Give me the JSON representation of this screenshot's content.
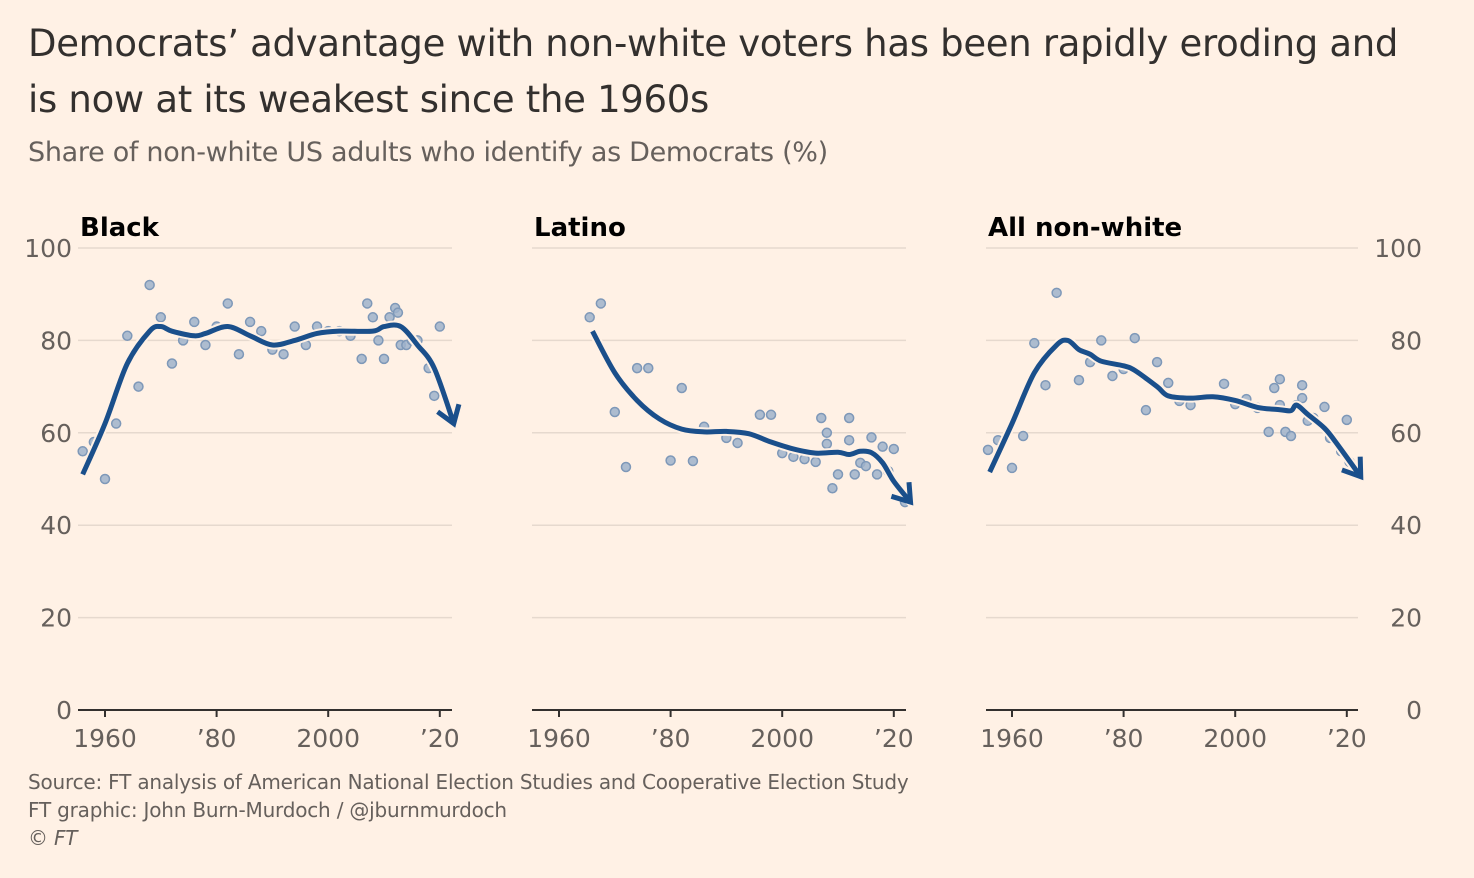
{
  "title": "Democrats’ advantage with non-white voters has been rapidly eroding and is now at its weakest since the 1960s",
  "subtitle": "Share of non-white US adults who identify as Democrats (%)",
  "source": "Source: FT analysis of American National Election Studies and Cooperative Election Study",
  "credit": "FT graphic: John Burn-Murdoch / @jburnmurdoch",
  "copyright": "© FT",
  "colors": {
    "background": "#FFF1E5",
    "trend": "#1A4F8B",
    "points": "#9FB3CB",
    "grid": "#E6D9CE",
    "axis": "#33302E"
  },
  "chart_data": [
    {
      "type": "scatter",
      "title": "Black",
      "ylim": [
        0,
        100
      ],
      "yticks": [
        "0",
        "20",
        "40",
        "60",
        "80",
        "100"
      ],
      "xticks": [
        "1960",
        "’80",
        "2000",
        "’20"
      ],
      "xtick_values": [
        1960,
        1980,
        2000,
        2020
      ],
      "points": [
        [
          1956,
          56
        ],
        [
          1958,
          58
        ],
        [
          1960,
          50
        ],
        [
          1962,
          62
        ],
        [
          1964,
          81
        ],
        [
          1966,
          70
        ],
        [
          1968,
          92
        ],
        [
          1970,
          85
        ],
        [
          1972,
          75
        ],
        [
          1974,
          80
        ],
        [
          1976,
          84
        ],
        [
          1978,
          79
        ],
        [
          1980,
          83
        ],
        [
          1982,
          88
        ],
        [
          1984,
          77
        ],
        [
          1986,
          84
        ],
        [
          1988,
          82
        ],
        [
          1990,
          78
        ],
        [
          1992,
          77
        ],
        [
          1994,
          83
        ],
        [
          1996,
          79
        ],
        [
          1998,
          83
        ],
        [
          2000,
          82
        ],
        [
          2002,
          82
        ],
        [
          2004,
          81
        ],
        [
          2006,
          76
        ],
        [
          2007,
          88
        ],
        [
          2008,
          85
        ],
        [
          2009,
          80
        ],
        [
          2010,
          76
        ],
        [
          2011,
          85
        ],
        [
          2012,
          87
        ],
        [
          2012.5,
          86
        ],
        [
          2013,
          79
        ],
        [
          2014,
          79
        ],
        [
          2015,
          80
        ],
        [
          2016,
          80
        ],
        [
          2018,
          74
        ],
        [
          2019,
          68
        ],
        [
          2020,
          83
        ]
      ],
      "trend": [
        [
          1956,
          51
        ],
        [
          1960,
          62
        ],
        [
          1964,
          75
        ],
        [
          1968,
          82
        ],
        [
          1970,
          83
        ],
        [
          1972,
          82
        ],
        [
          1976,
          81
        ],
        [
          1978,
          81.5
        ],
        [
          1982,
          83
        ],
        [
          1986,
          81
        ],
        [
          1990,
          79
        ],
        [
          1994,
          80
        ],
        [
          1998,
          81.5
        ],
        [
          2002,
          82
        ],
        [
          2008,
          82
        ],
        [
          2010,
          83
        ],
        [
          2013,
          83
        ],
        [
          2016,
          79
        ],
        [
          2019,
          74
        ],
        [
          2022.5,
          62
        ]
      ]
    },
    {
      "type": "scatter",
      "title": "Latino",
      "ylim": [
        0,
        100
      ],
      "xticks": [
        "1960",
        "’80",
        "2000",
        "’20"
      ],
      "xtick_values": [
        1960,
        1980,
        2000,
        2020
      ],
      "points": [
        [
          1965.5,
          85
        ],
        [
          1967.5,
          88
        ],
        [
          1970,
          64.5
        ],
        [
          1972,
          52.6
        ],
        [
          1974,
          74
        ],
        [
          1976,
          74
        ],
        [
          1980,
          54
        ],
        [
          1982,
          69.7
        ],
        [
          1984,
          53.9
        ],
        [
          1986,
          61.3
        ],
        [
          1990,
          58.9
        ],
        [
          1992,
          57.8
        ],
        [
          1996,
          63.9
        ],
        [
          1998,
          63.9
        ],
        [
          2000,
          55.6
        ],
        [
          2002,
          54.8
        ],
        [
          2004,
          54.3
        ],
        [
          2006,
          53.7
        ],
        [
          2007,
          63.2
        ],
        [
          2008,
          60
        ],
        [
          2008,
          57.6
        ],
        [
          2009,
          48
        ],
        [
          2010,
          51
        ],
        [
          2012,
          63.2
        ],
        [
          2012,
          58.4
        ],
        [
          2013,
          51
        ],
        [
          2014,
          53.5
        ],
        [
          2015,
          52.8
        ],
        [
          2016,
          59
        ],
        [
          2017,
          51
        ],
        [
          2018,
          57
        ],
        [
          2019,
          51.7
        ],
        [
          2020,
          56.5
        ],
        [
          2022,
          45
        ]
      ],
      "trend": [
        [
          1966,
          82
        ],
        [
          1970,
          73
        ],
        [
          1974,
          67
        ],
        [
          1978,
          63
        ],
        [
          1982,
          60.8
        ],
        [
          1986,
          60.2
        ],
        [
          1990,
          60.3
        ],
        [
          1994,
          59.8
        ],
        [
          1998,
          58
        ],
        [
          2002,
          56.5
        ],
        [
          2006,
          55.6
        ],
        [
          2010,
          55.8
        ],
        [
          2012,
          55.3
        ],
        [
          2014,
          56
        ],
        [
          2016,
          55.7
        ],
        [
          2018,
          53.5
        ],
        [
          2020,
          49.5
        ],
        [
          2023,
          45
        ]
      ]
    },
    {
      "type": "scatter",
      "title": "All non-white",
      "ylim": [
        0,
        100
      ],
      "yticks": [
        "0",
        "20",
        "40",
        "60",
        "80",
        "100"
      ],
      "xticks": [
        "1960",
        "’80",
        "2000",
        "’20"
      ],
      "xtick_values": [
        1960,
        1980,
        2000,
        2020
      ],
      "points": [
        [
          1955.7,
          56.3
        ],
        [
          1957.5,
          58.4
        ],
        [
          1960,
          52.4
        ],
        [
          1962,
          59.3
        ],
        [
          1964,
          79.4
        ],
        [
          1966,
          70.3
        ],
        [
          1968,
          90.3
        ],
        [
          1972,
          71.4
        ],
        [
          1974,
          75.3
        ],
        [
          1976,
          80
        ],
        [
          1978,
          72.3
        ],
        [
          1980,
          73.8
        ],
        [
          1982,
          80.5
        ],
        [
          1984,
          64.9
        ],
        [
          1986,
          75.3
        ],
        [
          1988,
          70.8
        ],
        [
          1990,
          66.9
        ],
        [
          1992,
          66
        ],
        [
          1998,
          70.6
        ],
        [
          2000,
          66.2
        ],
        [
          2002,
          67.3
        ],
        [
          2004,
          65.4
        ],
        [
          2006,
          60.2
        ],
        [
          2007,
          69.7
        ],
        [
          2008,
          71.6
        ],
        [
          2008,
          66
        ],
        [
          2009,
          60.2
        ],
        [
          2010,
          59.3
        ],
        [
          2011,
          66
        ],
        [
          2012,
          70.3
        ],
        [
          2012,
          67.5
        ],
        [
          2013,
          62.6
        ],
        [
          2014,
          63.2
        ],
        [
          2016,
          65.6
        ],
        [
          2017,
          58.9
        ],
        [
          2019,
          56
        ],
        [
          2020,
          62.8
        ],
        [
          2020.5,
          53.7
        ]
      ],
      "trend": [
        [
          1956,
          51.5
        ],
        [
          1960,
          62
        ],
        [
          1964,
          73
        ],
        [
          1968,
          79
        ],
        [
          1970,
          80
        ],
        [
          1972,
          78
        ],
        [
          1974,
          77
        ],
        [
          1976,
          75.5
        ],
        [
          1980,
          74.5
        ],
        [
          1982,
          73.5
        ],
        [
          1986,
          70
        ],
        [
          1988,
          68
        ],
        [
          1992,
          67.5
        ],
        [
          1996,
          67.8
        ],
        [
          2000,
          67
        ],
        [
          2004,
          65.5
        ],
        [
          2008,
          65
        ],
        [
          2010,
          64.8
        ],
        [
          2011,
          66
        ],
        [
          2013,
          64
        ],
        [
          2016,
          61
        ],
        [
          2018,
          58
        ],
        [
          2022.5,
          50.5
        ]
      ]
    }
  ]
}
